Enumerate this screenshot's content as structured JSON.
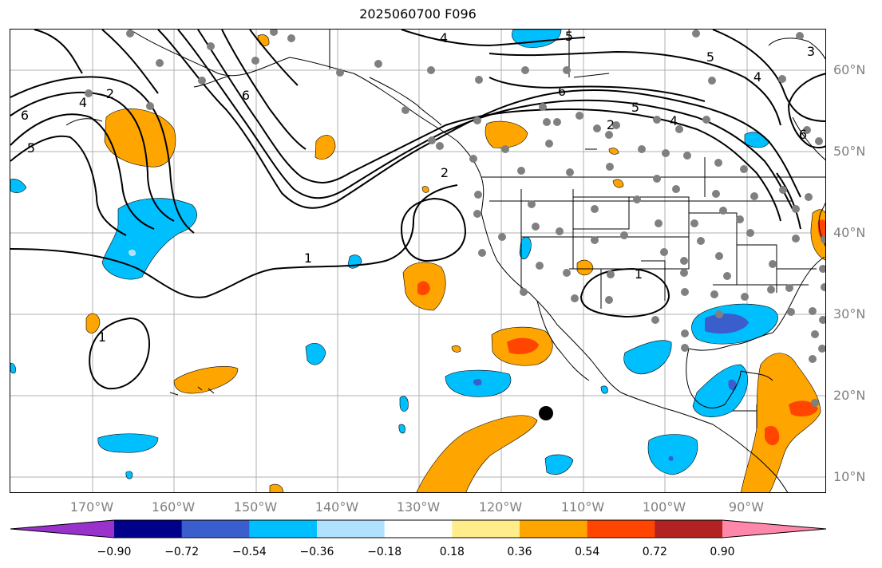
{
  "title": "2025060700 F096",
  "lat_labels": [
    {
      "text": "60°N"
    },
    {
      "text": "50°N"
    },
    {
      "text": "40°N"
    },
    {
      "text": "30°N"
    },
    {
      "text": "20°N"
    },
    {
      "text": "10°N"
    }
  ],
  "lon_labels": [
    {
      "text": "170°W"
    },
    {
      "text": "160°W"
    },
    {
      "text": "150°W"
    },
    {
      "text": "140°W"
    },
    {
      "text": "130°W"
    },
    {
      "text": "120°W"
    },
    {
      "text": "110°W"
    },
    {
      "text": "100°W"
    },
    {
      "text": "90°W"
    }
  ],
  "contour_labels": [
    {
      "text": "6"
    },
    {
      "text": "4"
    },
    {
      "text": "2"
    },
    {
      "text": "5"
    },
    {
      "text": "6"
    },
    {
      "text": "4"
    },
    {
      "text": "5"
    },
    {
      "text": "6"
    },
    {
      "text": "5"
    },
    {
      "text": "2"
    },
    {
      "text": "4"
    },
    {
      "text": "1"
    },
    {
      "text": "1"
    },
    {
      "text": "2"
    },
    {
      "text": "1"
    },
    {
      "text": "4"
    },
    {
      "text": "3"
    },
    {
      "text": "5"
    },
    {
      "text": "6"
    }
  ],
  "colorbar": {
    "colors": [
      "#9932cc",
      "#00008b",
      "#3a5fcd",
      "#00bfff",
      "#b0e2ff",
      "#ffffff",
      "#ffec8b",
      "#ffa500",
      "#ff4500",
      "#b22222",
      "#ff88aa"
    ],
    "ticks": [
      "−0.90",
      "−0.72",
      "−0.54",
      "−0.36",
      "−0.18",
      "0.18",
      "0.36",
      "0.54",
      "0.72",
      "0.90"
    ]
  },
  "colors": {
    "positive_light": "#ffa500",
    "positive_strong": "#ff4500",
    "negative_light": "#00bfff",
    "negative_strong": "#3a5fcd",
    "stations": "#808080",
    "grid": "#b0b0b0"
  }
}
